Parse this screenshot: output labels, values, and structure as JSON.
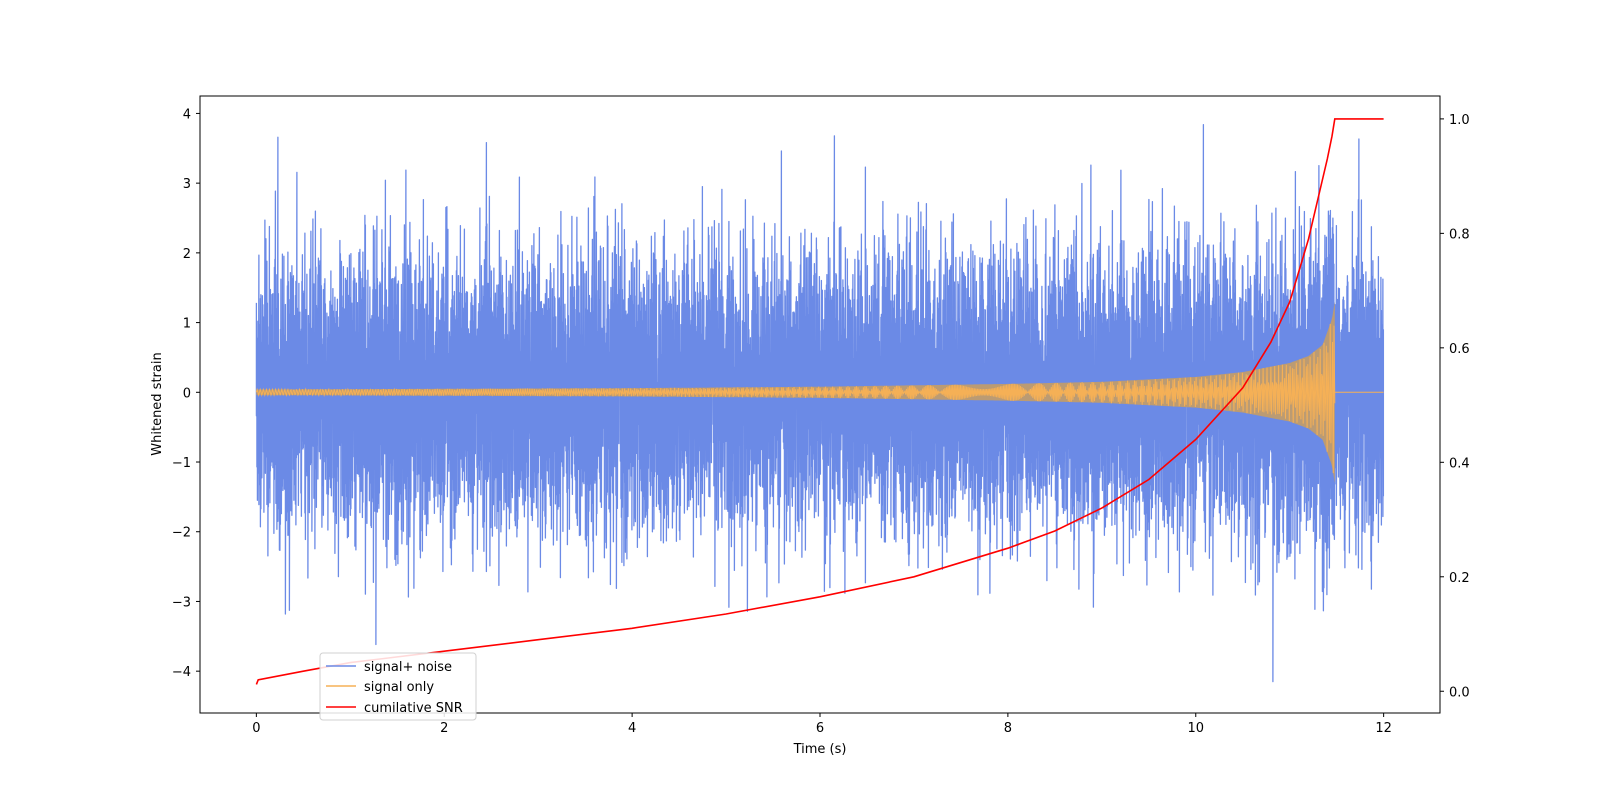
{
  "chart_data": {
    "type": "line",
    "xlabel": "Time (s)",
    "ylabel": "Whitened strain",
    "ylabel_right": "",
    "xlim": [
      -0.6,
      12.6
    ],
    "ylim": [
      -4.6,
      4.25
    ],
    "ylim_right": [
      -0.038,
      1.04
    ],
    "xticks": [
      0,
      2,
      4,
      6,
      8,
      10,
      12
    ],
    "yticks": [
      -4,
      -3,
      -2,
      -1,
      0,
      1,
      2,
      3,
      4
    ],
    "yticks_right": [
      0.0,
      0.2,
      0.4,
      0.6,
      0.8,
      1.0
    ],
    "ytick_labels": [
      "−4",
      "−3",
      "−2",
      "−1",
      "0",
      "1",
      "2",
      "3",
      "4"
    ],
    "yticks_right_labels": [
      "0.0",
      "0.2",
      "0.4",
      "0.6",
      "0.8",
      "1.0"
    ],
    "grid": false,
    "legend_position": "lower-left",
    "series": [
      {
        "name": "signal+ noise",
        "color": "#6b8ae6",
        "axis": "left",
        "description": "white Gaussian noise plus chirp, roughly unit standard deviation",
        "x_range": [
          0,
          12
        ],
        "approx_std": 0.95,
        "min": -4.15,
        "max": 3.88
      },
      {
        "name": "signal only",
        "color": "#f5b056",
        "axis": "left",
        "description": "inspiral chirp, amplitude growing until merger then zero",
        "x_range": [
          0,
          12
        ],
        "merger_time": 11.48,
        "envelope": {
          "x": [
            0,
            2,
            4,
            6,
            8,
            9,
            10,
            10.5,
            11,
            11.2,
            11.35,
            11.45,
            11.48
          ],
          "y": [
            0.04,
            0.05,
            0.06,
            0.08,
            0.12,
            0.15,
            0.22,
            0.29,
            0.42,
            0.52,
            0.68,
            1.05,
            1.3
          ]
        }
      },
      {
        "name": "cumilative SNR",
        "color": "#ff0000",
        "axis": "right",
        "x": [
          0,
          0.02,
          0.5,
          1,
          2,
          3,
          4,
          5,
          6,
          7,
          8,
          8.5,
          9,
          9.5,
          10,
          10.5,
          10.8,
          11,
          11.2,
          11.3,
          11.4,
          11.45,
          11.48,
          12
        ],
        "y": [
          0.012,
          0.02,
          0.035,
          0.05,
          0.07,
          0.09,
          0.11,
          0.135,
          0.165,
          0.2,
          0.25,
          0.28,
          0.32,
          0.37,
          0.44,
          0.53,
          0.61,
          0.68,
          0.79,
          0.86,
          0.93,
          0.97,
          1.0,
          1.0
        ]
      }
    ]
  }
}
